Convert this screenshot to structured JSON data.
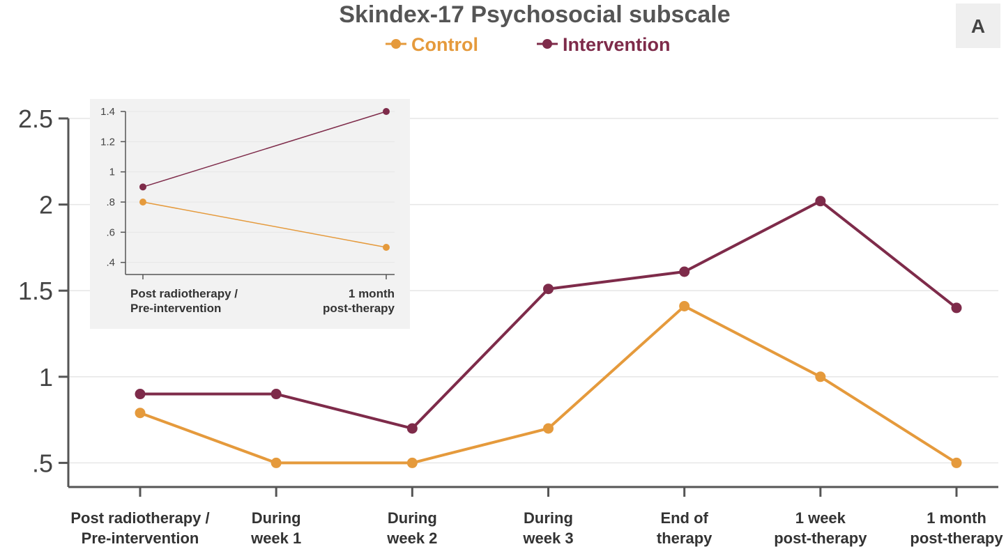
{
  "panel_label": "A",
  "colors": {
    "control": "#E59A3C",
    "intervention": "#7E2B4A",
    "axis": "#555555",
    "grid": "#E6E6E6",
    "inset_bg": "#F2F2F2",
    "badge_bg": "#EFEFEF"
  },
  "chart_data": [
    {
      "type": "line",
      "title": "Skindex-17 Psychosocial subscale",
      "legend": [
        "Control",
        "Intervention"
      ],
      "legend_position": "top-center",
      "categories": [
        [
          "Post radiotherapy /",
          "Pre-intervention"
        ],
        [
          "During",
          "week 1"
        ],
        [
          "During",
          "week 2"
        ],
        [
          "During",
          "week 3"
        ],
        [
          "End of",
          "therapy"
        ],
        [
          "1 week",
          "post-therapy"
        ],
        [
          "1 month",
          "post-therapy"
        ]
      ],
      "series": [
        {
          "name": "Control",
          "values": [
            0.79,
            0.5,
            0.5,
            0.7,
            1.41,
            1.0,
            0.5
          ]
        },
        {
          "name": "Intervention",
          "values": [
            0.9,
            0.9,
            0.7,
            1.51,
            1.61,
            2.02,
            1.4
          ]
        }
      ],
      "yticks": [
        0.5,
        1,
        1.5,
        2,
        2.5
      ],
      "ytick_labels": [
        ".5",
        "1",
        "1.5",
        "2",
        "2.5"
      ],
      "ylim": [
        0.36,
        2.5
      ],
      "grid": true
    },
    {
      "type": "line",
      "role": "inset",
      "categories": [
        [
          "Post radiotherapy /",
          "Pre-intervention"
        ],
        [
          "1 month",
          "post-therapy"
        ]
      ],
      "series": [
        {
          "name": "Control",
          "values": [
            0.8,
            0.5
          ]
        },
        {
          "name": "Intervention",
          "values": [
            0.9,
            1.4
          ]
        }
      ],
      "yticks": [
        0.4,
        0.6,
        0.8,
        1.0,
        1.2,
        1.4
      ],
      "ytick_labels": [
        ".4",
        ".6",
        ".8",
        "1",
        "1.2",
        "1.4"
      ],
      "ylim": [
        0.32,
        1.4
      ],
      "grid": true
    }
  ]
}
